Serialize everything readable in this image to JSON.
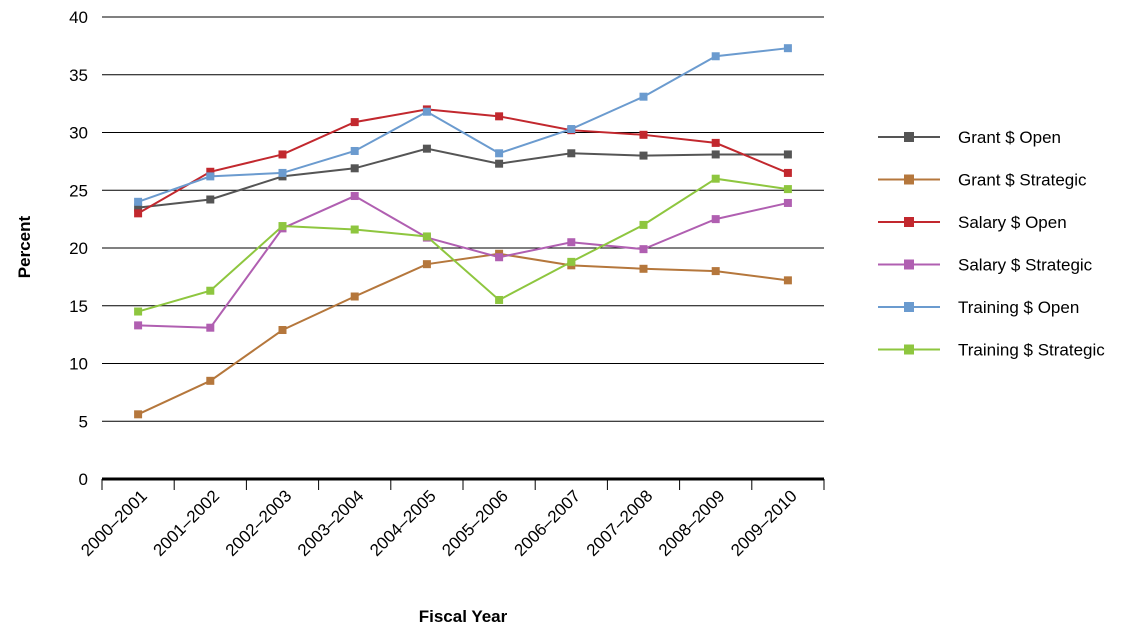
{
  "chart_data": {
    "type": "line",
    "xlabel": "Fiscal Year",
    "ylabel": "Percent",
    "ylim": [
      0,
      40
    ],
    "yticks": [
      0,
      5,
      10,
      15,
      20,
      25,
      30,
      35,
      40
    ],
    "ytick_labels": [
      "0",
      "5",
      "10",
      "15",
      "20",
      "25",
      "30",
      "35",
      "40"
    ],
    "grid": true,
    "legend_position": "right",
    "categories": [
      "2000–2001",
      "2001–2002",
      "2002–2003",
      "2003–2004",
      "2004–2005",
      "2005–2006",
      "2006–2007",
      "2007–2008",
      "2008–2009",
      "2009–2010"
    ],
    "series": [
      {
        "name": "Grant $ Open",
        "color": "#555555",
        "values": [
          23.5,
          24.2,
          26.2,
          26.9,
          28.6,
          27.3,
          28.2,
          28.0,
          28.1,
          28.1
        ]
      },
      {
        "name": "Grant $ Strategic",
        "color": "#b5773c",
        "values": [
          5.6,
          8.5,
          12.9,
          15.8,
          18.6,
          19.5,
          18.5,
          18.2,
          18.0,
          17.2
        ]
      },
      {
        "name": "Salary $ Open",
        "color": "#c2282e",
        "values": [
          23.0,
          26.6,
          28.1,
          30.9,
          32.0,
          31.4,
          30.2,
          29.8,
          29.1,
          26.5
        ]
      },
      {
        "name": "Salary $ Strategic",
        "color": "#b05fb1",
        "values": [
          13.3,
          13.1,
          21.7,
          24.5,
          20.9,
          19.2,
          20.5,
          19.9,
          22.5,
          23.9
        ]
      },
      {
        "name": "Training $ Open",
        "color": "#6b9bcf",
        "values": [
          24.0,
          26.2,
          26.5,
          28.4,
          31.8,
          28.2,
          30.3,
          33.1,
          36.6,
          37.3
        ]
      },
      {
        "name": "Training $ Strategic",
        "color": "#8ec63f",
        "values": [
          14.5,
          16.3,
          21.9,
          21.6,
          21.0,
          15.5,
          18.8,
          22.0,
          26.0,
          25.1
        ]
      }
    ]
  }
}
